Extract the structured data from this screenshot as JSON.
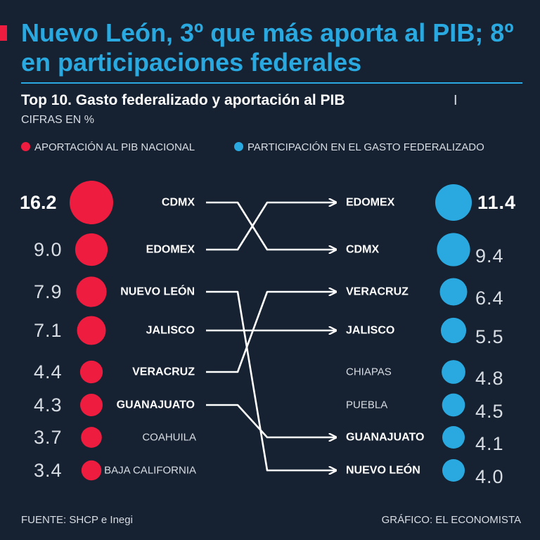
{
  "header": {
    "title": "Nuevo León, 3º que más aporta al PIB; 8º en participaciones federales",
    "subtitle": "Top 10. Gasto federalizado y aportación al PIB",
    "separator": "I",
    "units": "CIFRAS EN %"
  },
  "legend": {
    "left_label": "APORTACIÓN AL PIB NACIONAL",
    "right_label": "PARTICIPACIÓN EN EL GASTO FEDERALIZADO"
  },
  "colors": {
    "background": "#162231",
    "pib": "#ee1d3f",
    "gasto": "#2aa9e0",
    "text": "#ffffff",
    "muted": "#d8dde4"
  },
  "chart_data": {
    "type": "slope",
    "left_series": {
      "name": "APORTACIÓN AL PIB NACIONAL",
      "labels": [
        "CDMX",
        "EDOMEX",
        "NUEVO LEÓN",
        "JALISCO",
        "VERACRUZ",
        "GUANAJUATO",
        "COAHUILA",
        "BAJA CALIFORNIA"
      ],
      "values": [
        16.2,
        9.0,
        7.9,
        7.1,
        4.4,
        4.3,
        3.7,
        3.4
      ],
      "value_labels": [
        "16.2",
        "9.0",
        "7.9",
        "7.1",
        "4.4",
        "4.3",
        "3.7",
        "3.4"
      ]
    },
    "right_series": {
      "name": "PARTICIPACIÓN EN EL GASTO FEDERALIZADO",
      "labels": [
        "EDOMEX",
        "CDMX",
        "VERACRUZ",
        "JALISCO",
        "CHIAPAS",
        "PUEBLA",
        "GUANAJUATO",
        "NUEVO LEÓN"
      ],
      "values": [
        11.4,
        9.4,
        6.4,
        5.5,
        4.8,
        4.5,
        4.1,
        4.0
      ],
      "value_labels": [
        "11.4",
        "9.4",
        "6.4",
        "5.5",
        "4.8",
        "4.5",
        "4.1",
        "4.0"
      ]
    },
    "connections": [
      {
        "from": "CDMX",
        "to": "CDMX"
      },
      {
        "from": "EDOMEX",
        "to": "EDOMEX"
      },
      {
        "from": "NUEVO LEÓN",
        "to": "NUEVO LEÓN"
      },
      {
        "from": "JALISCO",
        "to": "JALISCO"
      },
      {
        "from": "VERACRUZ",
        "to": "VERACRUZ"
      },
      {
        "from": "GUANAJUATO",
        "to": "GUANAJUATO"
      }
    ]
  },
  "footer": {
    "source": "FUENTE: SHCP e Inegi",
    "credit": "GRÁFICO: EL ECONOMISTA"
  }
}
